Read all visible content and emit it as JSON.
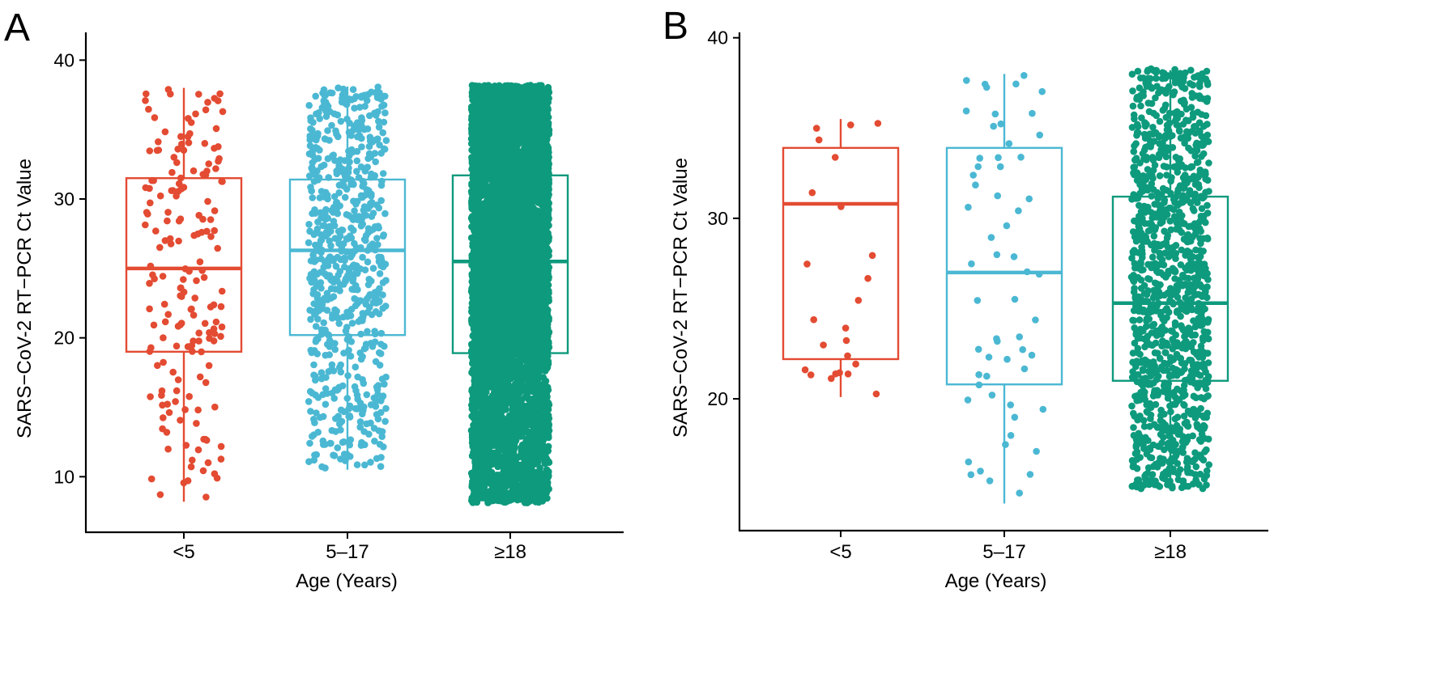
{
  "colors": {
    "lt5": "#E34B32",
    "5to17": "#4BB8D3",
    "ge18": "#0E9A7D",
    "axis": "#000000"
  },
  "chart_data": [
    {
      "type": "box",
      "panel_label": "A",
      "xlabel": "Age (Years)",
      "ylabel": "SARS−CoV-2 RT−PCR Ct Value",
      "categories": [
        "<5",
        "5–17",
        "≥18"
      ],
      "ylim": [
        6,
        42
      ],
      "yticks": [
        10,
        20,
        30,
        40
      ],
      "grid": false,
      "boxes": [
        {
          "category": "<5",
          "whisker_low": 8.2,
          "q1": 19.0,
          "median": 25.0,
          "q3": 31.5,
          "whisker_high": 38.0,
          "points_min": 8.2,
          "points_max": 38.0,
          "approx_n": 180
        },
        {
          "category": "5–17",
          "whisker_low": 10.5,
          "q1": 20.2,
          "median": 26.3,
          "q3": 31.4,
          "whisker_high": 38.1,
          "points_min": 10.6,
          "points_max": 38.1,
          "approx_n": 700
        },
        {
          "category": "≥18",
          "whisker_low": 8.1,
          "q1": 18.9,
          "median": 25.5,
          "q3": 31.7,
          "whisker_high": 38.2,
          "points_min": 8.1,
          "points_max": 38.2,
          "approx_n": 6000
        }
      ]
    },
    {
      "type": "box",
      "panel_label": "B",
      "xlabel": "Age (Years)",
      "ylabel": "SARS−CoV-2 RT−PCR Ct Value",
      "categories": [
        "<5",
        "5–17",
        "≥18"
      ],
      "ylim": [
        12.7,
        40.3
      ],
      "yticks": [
        20,
        30,
        40
      ],
      "grid": false,
      "boxes": [
        {
          "category": "<5",
          "whisker_low": 20.1,
          "q1": 22.2,
          "median": 30.8,
          "q3": 33.9,
          "whisker_high": 35.5,
          "points_min": 20.1,
          "points_max": 35.5,
          "approx_n": 24
        },
        {
          "category": "5–17",
          "whisker_low": 14.2,
          "q1": 20.8,
          "median": 27.0,
          "q3": 33.9,
          "whisker_high": 38.0,
          "points_min": 14.2,
          "points_max": 38.0,
          "approx_n": 60
        },
        {
          "category": "≥18",
          "whisker_low": 15.0,
          "q1": 21.0,
          "median": 25.3,
          "q3": 31.2,
          "whisker_high": 38.2,
          "points_min": 15.0,
          "points_max": 38.3,
          "approx_n": 1200
        }
      ]
    }
  ]
}
